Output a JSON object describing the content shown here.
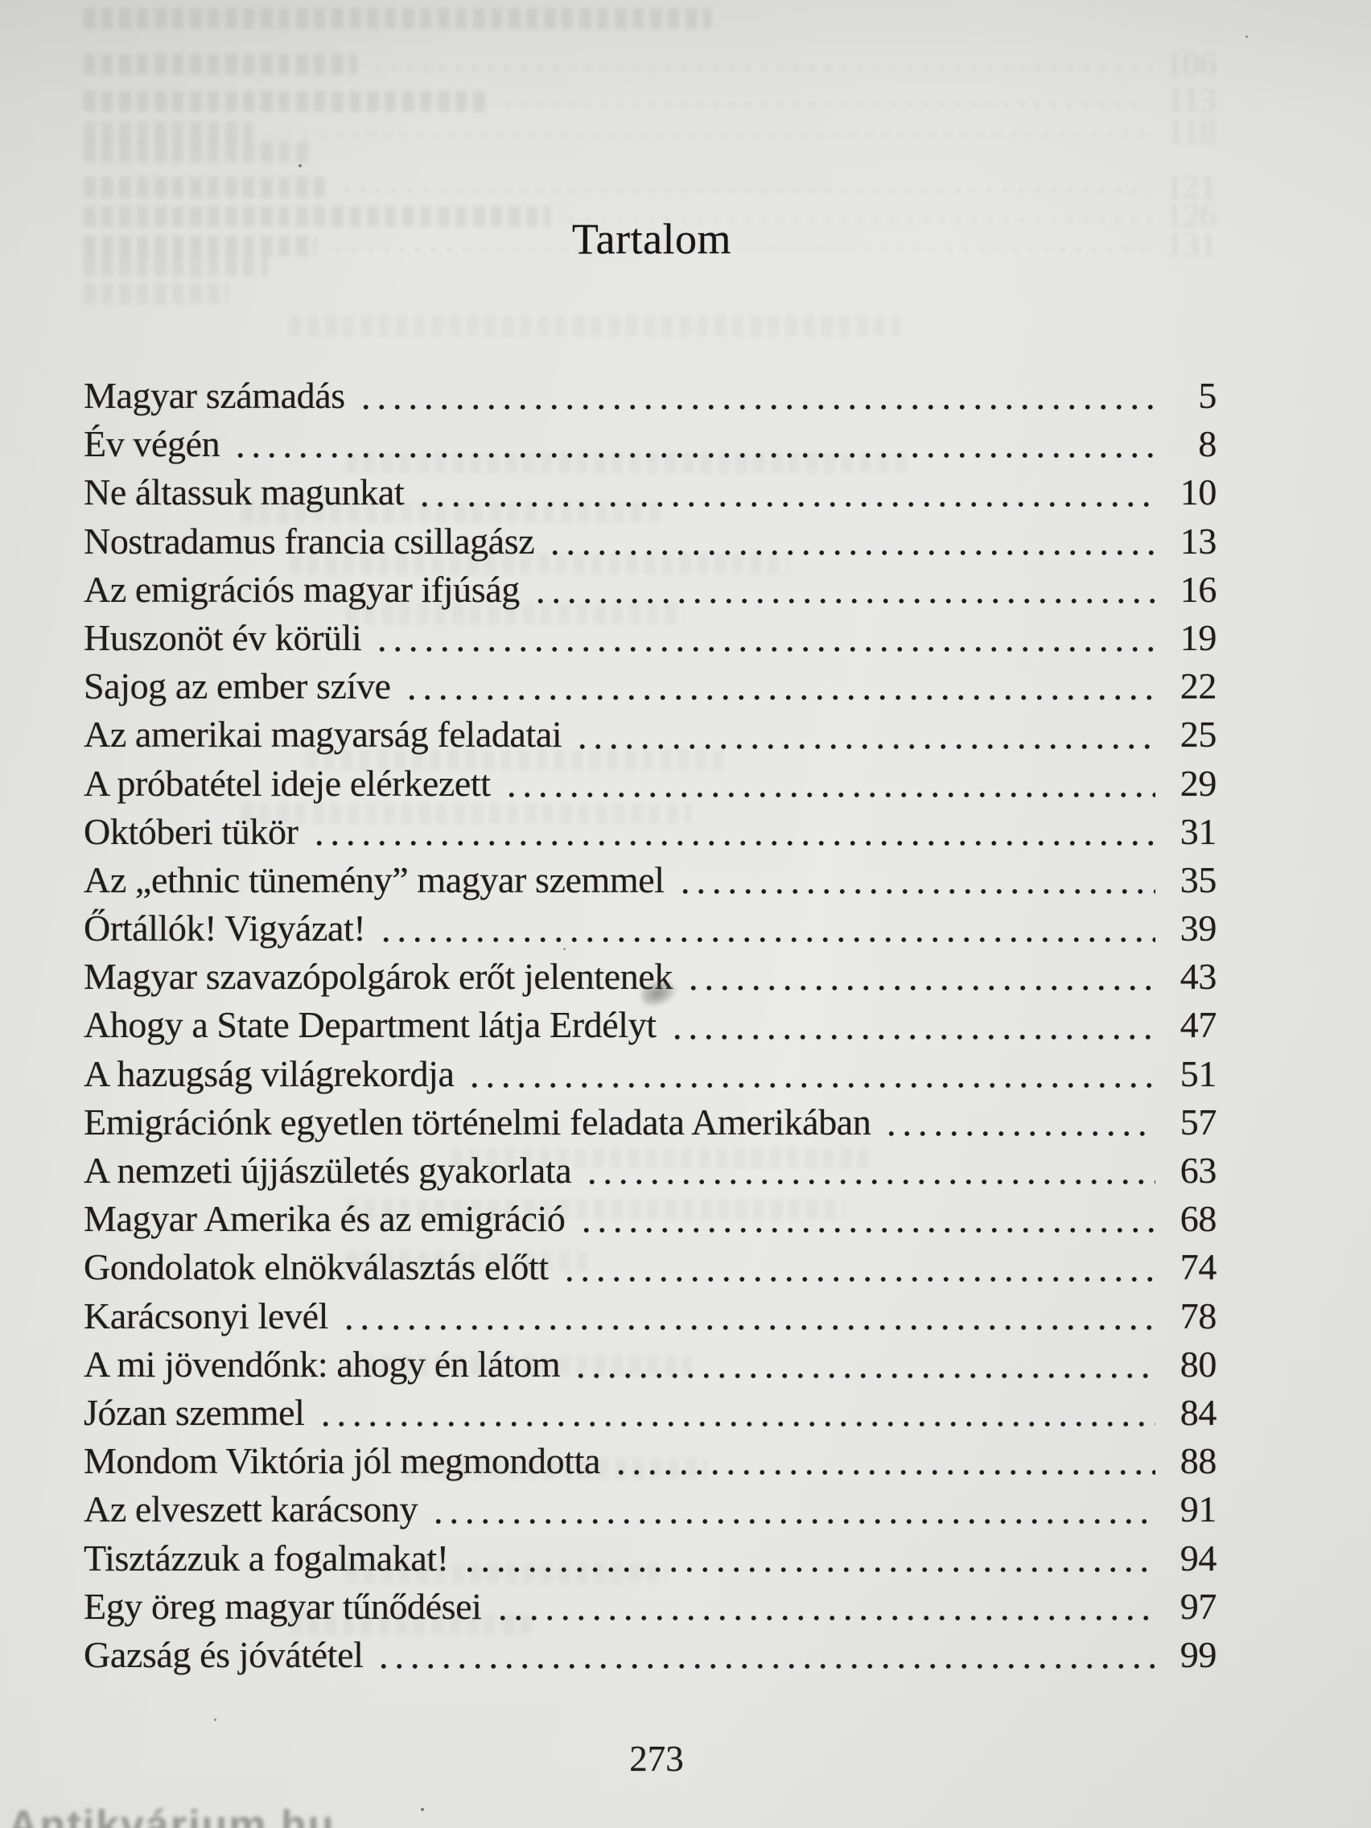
{
  "document": {
    "title": "Tartalom",
    "folio": "273",
    "watermark": "Antikvárium.hu"
  },
  "toc": {
    "entries": [
      {
        "title": "Magyar számadás",
        "page": "5"
      },
      {
        "title": "Év végén",
        "page": "8"
      },
      {
        "title": "Ne áltassuk magunkat",
        "page": "10"
      },
      {
        "title": "Nostradamus francia csillagász",
        "page": "13"
      },
      {
        "title": "Az emigrációs magyar ifjúság",
        "page": "16"
      },
      {
        "title": "Huszonöt év körüli",
        "page": "19"
      },
      {
        "title": "Sajog az ember szíve",
        "page": "22"
      },
      {
        "title": "Az amerikai magyarság feladatai",
        "page": "25"
      },
      {
        "title": "A próbatétel ideje elérkezett",
        "page": "29"
      },
      {
        "title": "Októberi tükör",
        "page": "31"
      },
      {
        "title": "Az „ethnic tünemény” magyar szemmel",
        "page": "35"
      },
      {
        "title": "Őrtállók! Vigyázat!",
        "page": "39"
      },
      {
        "title": "Magyar szavazópolgárok erőt jelentenek",
        "page": "43"
      },
      {
        "title": "Ahogy a State Department látja Erdélyt",
        "page": "47"
      },
      {
        "title": "A hazugság világrekordja",
        "page": "51"
      },
      {
        "title": "Emigrációnk egyetlen történelmi feladata Amerikában",
        "page": "57"
      },
      {
        "title": "A nemzeti újjászületés gyakorlata",
        "page": "63"
      },
      {
        "title": "Magyar Amerika és az emigráció",
        "page": "68"
      },
      {
        "title": "Gondolatok elnökválasztás előtt",
        "page": "74"
      },
      {
        "title": "Karácsonyi levél",
        "page": "78"
      },
      {
        "title": "A mi jövendőnk: ahogy én látom",
        "page": "80"
      },
      {
        "title": "Józan szemmel",
        "page": "84"
      },
      {
        "title": "Mondom Viktória jól megmondotta",
        "page": "88"
      },
      {
        "title": "Az elveszett karácsony",
        "page": "91"
      },
      {
        "title": "Tisztázzuk a fogalmakat!",
        "page": "94"
      },
      {
        "title": "Egy öreg magyar tűnődései",
        "page": "97"
      },
      {
        "title": "Gazság és jóvátétel",
        "page": "99"
      }
    ]
  },
  "bleed_through": {
    "numbers": [
      "106",
      "113",
      "118",
      "121",
      "126",
      "131"
    ]
  }
}
